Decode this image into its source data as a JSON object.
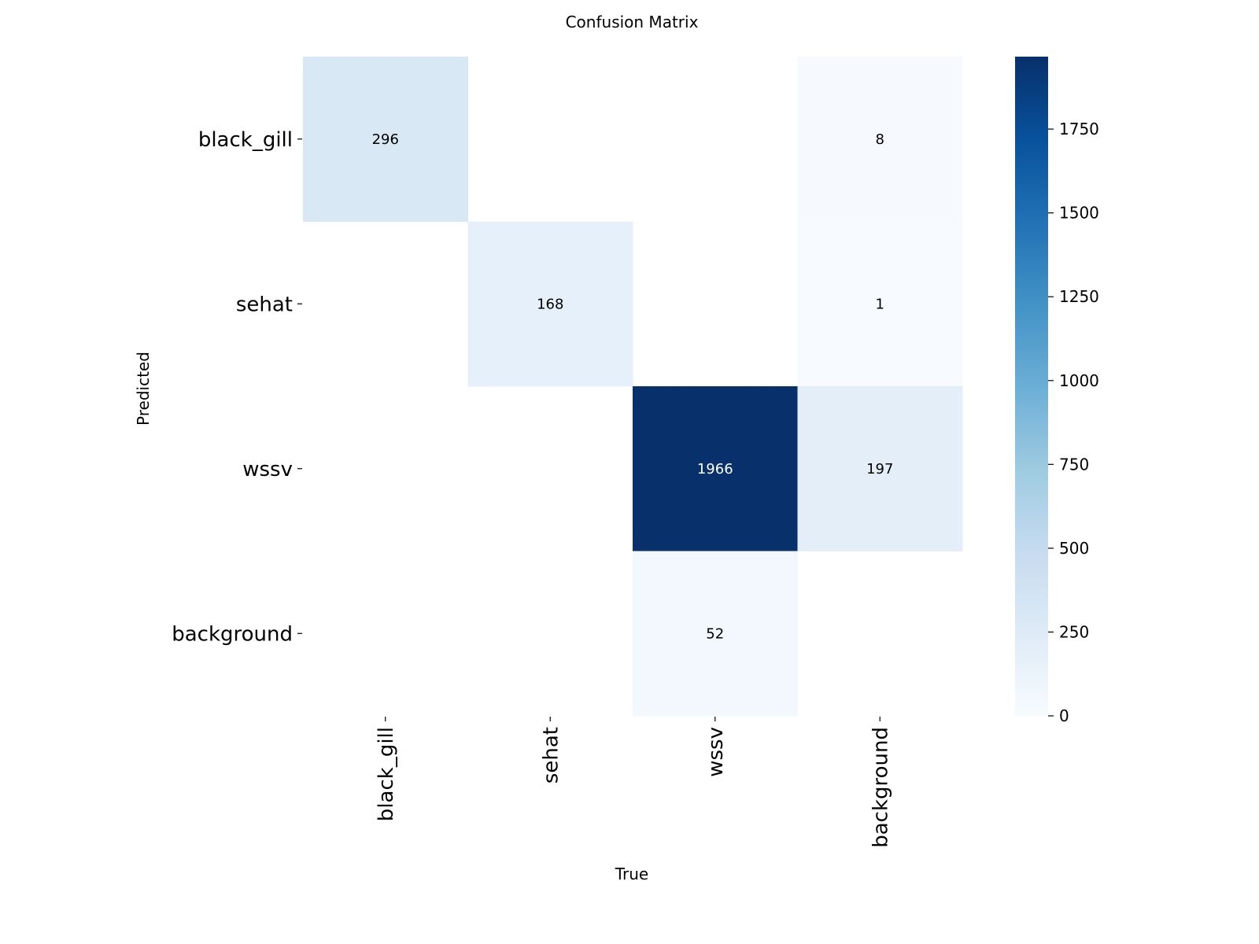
{
  "chart_data": {
    "type": "heatmap",
    "title": "Confusion Matrix",
    "xlabel": "True",
    "ylabel": "Predicted",
    "x_categories": [
      "black_gill",
      "sehat",
      "wssv",
      "background"
    ],
    "y_categories": [
      "black_gill",
      "sehat",
      "wssv",
      "background"
    ],
    "values": [
      [
        296,
        null,
        null,
        8
      ],
      [
        null,
        168,
        null,
        1
      ],
      [
        null,
        null,
        1966,
        197
      ],
      [
        null,
        null,
        52,
        null
      ]
    ],
    "colorbar": {
      "min": 0,
      "max": 1966,
      "ticks": [
        0,
        250,
        500,
        750,
        1000,
        1250,
        1500,
        1750
      ]
    },
    "colormap": "Blues",
    "colormap_low": "#f7fbff",
    "colormap_high": "#08306b",
    "empty_cell_color": "#ffffff"
  }
}
